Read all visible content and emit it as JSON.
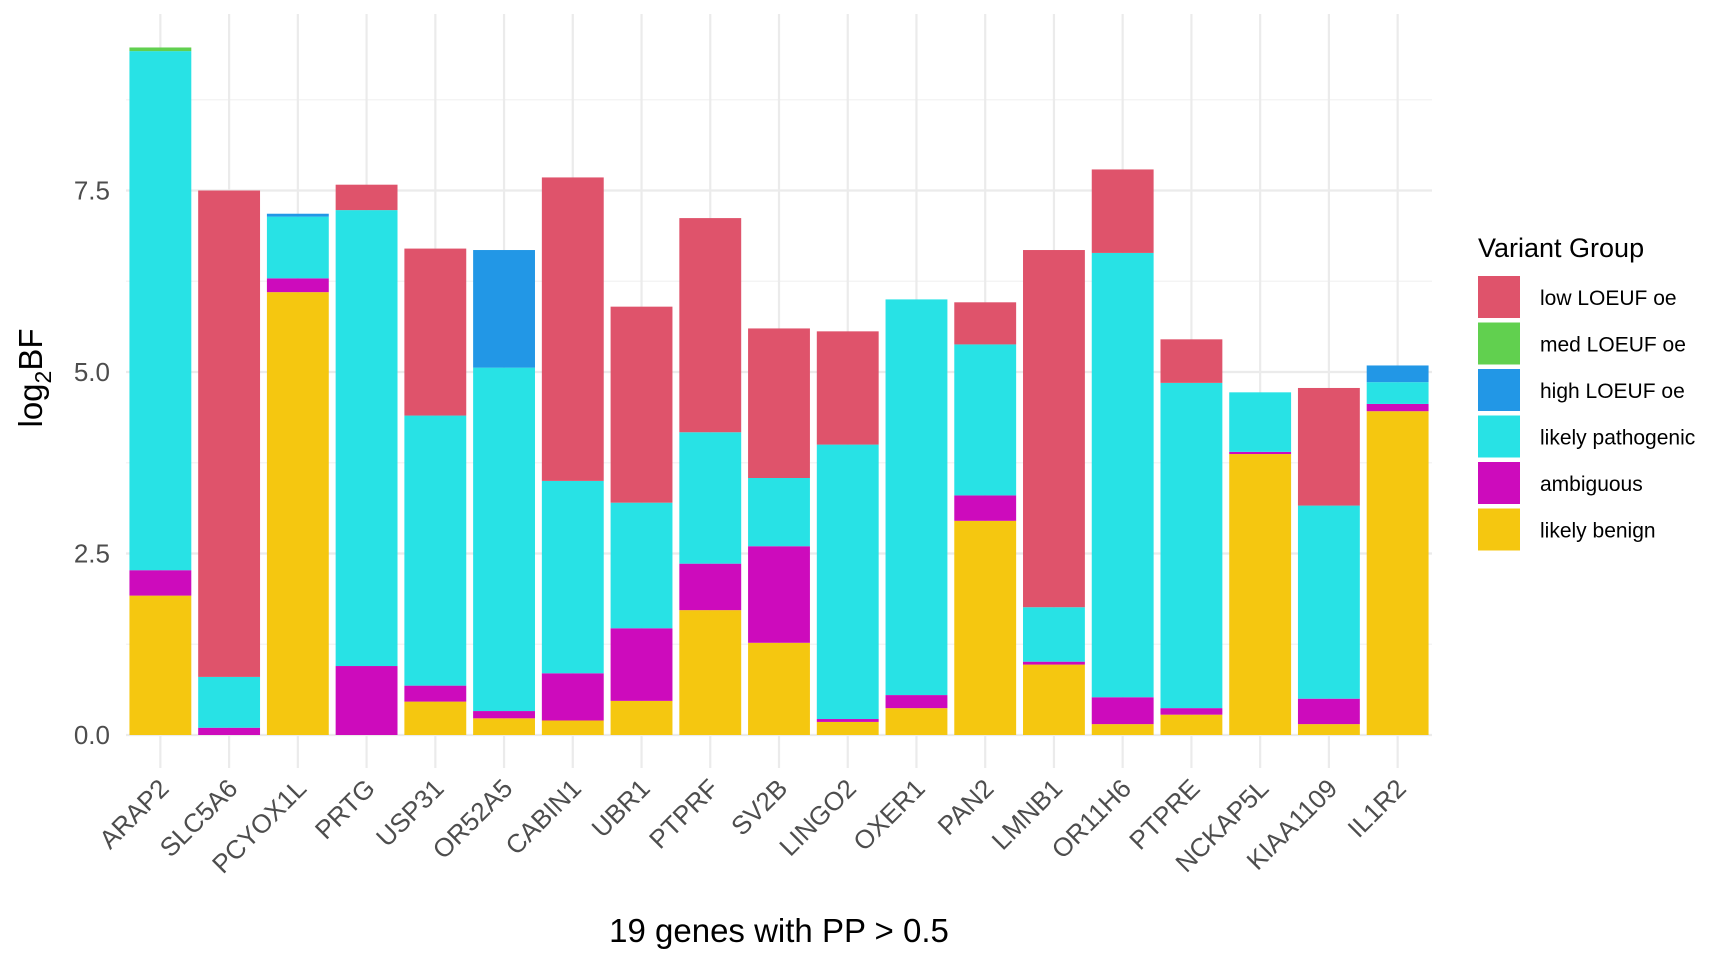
{
  "chart_data": {
    "type": "bar",
    "stacked": true,
    "title": "",
    "xlabel": "19 genes with PP > 0.5",
    "ylabel_main": "log",
    "ylabel_sub": "2",
    "ylabel_tail": "BF",
    "ylim": [
      -0.25,
      9.7
    ],
    "yticks": [
      0,
      2.5,
      5,
      7.5
    ],
    "ytick_labels": [
      "0.0",
      "2.5",
      "5.0",
      "7.5"
    ],
    "grid": true,
    "legend_title": "Variant Group",
    "legend_position": "right",
    "categories": [
      "ARAP2",
      "SLC5A6",
      "PCYOX1L",
      "PRTG",
      "USP31",
      "OR52A5",
      "CABIN1",
      "UBR1",
      "PTPRF",
      "SV2B",
      "LINGO2",
      "OXER1",
      "PAN2",
      "LMNB1",
      "OR11H6",
      "PTPRE",
      "NCKAP5L",
      "KIAA1109",
      "IL1R2"
    ],
    "series": [
      {
        "name": "likely benign",
        "color": "#F5C710",
        "values": [
          1.92,
          0,
          6.1,
          0,
          0.46,
          0.23,
          0.2,
          0.47,
          1.72,
          1.27,
          0.18,
          0.37,
          2.95,
          0.97,
          0.15,
          0.28,
          3.87,
          0.15,
          4.46
        ]
      },
      {
        "name": "ambiguous",
        "color": "#CD0BBC",
        "values": [
          0.35,
          0.1,
          0.19,
          0.95,
          0.22,
          0.1,
          0.65,
          1.0,
          0.64,
          1.33,
          0.04,
          0.18,
          0.35,
          0.04,
          0.37,
          0.09,
          0.03,
          0.35,
          0.1
        ]
      },
      {
        "name": "likely pathogenic",
        "color": "#28E2E5",
        "values": [
          7.15,
          0.7,
          0.85,
          6.28,
          3.72,
          4.73,
          2.65,
          1.73,
          1.81,
          0.94,
          3.78,
          5.45,
          2.08,
          0.75,
          6.12,
          4.48,
          0.82,
          2.66,
          0.3
        ]
      },
      {
        "name": "high LOEUF oe",
        "color": "#2297E6",
        "values": [
          0,
          0,
          0.04,
          0,
          0,
          1.62,
          0,
          0,
          0,
          0,
          0,
          0,
          0,
          0,
          0,
          0,
          0,
          0,
          0.23
        ]
      },
      {
        "name": "med LOEUF oe",
        "color": "#61D04F",
        "values": [
          0.05,
          0,
          0,
          0,
          0,
          0,
          0,
          0,
          0,
          0,
          0,
          0,
          0,
          0,
          0,
          0,
          0,
          0,
          0
        ]
      },
      {
        "name": "low LOEUF oe",
        "color": "#DF536B",
        "values": [
          0,
          6.7,
          0,
          0.35,
          2.3,
          0,
          4.18,
          2.7,
          2.95,
          2.06,
          1.56,
          0,
          0.58,
          4.92,
          1.15,
          0.6,
          0,
          1.62,
          0
        ]
      }
    ],
    "legend_order": [
      "low LOEUF oe",
      "med LOEUF oe",
      "high LOEUF oe",
      "likely pathogenic",
      "ambiguous",
      "likely benign"
    ]
  }
}
